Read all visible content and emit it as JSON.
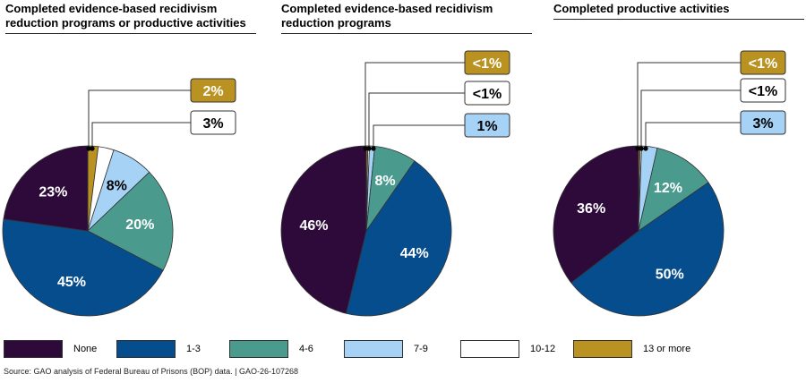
{
  "colors": {
    "None": "#2e0a3b",
    "1-3": "#064d8d",
    "4-6": "#4a9a8e",
    "7-9": "#a6d2f6",
    "10-12": "#ffffff",
    "13 or more": "#b99222"
  },
  "legend": [
    "None",
    "1-3",
    "4-6",
    "7-9",
    "10-12",
    "13 or more"
  ],
  "chart_data": [
    {
      "type": "pie",
      "title": "Completed evidence-based recidivism reduction programs or productive activities",
      "slices": [
        {
          "category": "13 or more",
          "value": 2,
          "label": "2%"
        },
        {
          "category": "10-12",
          "value": 3,
          "label": "3%"
        },
        {
          "category": "7-9",
          "value": 8,
          "label": "8%"
        },
        {
          "category": "4-6",
          "value": 20,
          "label": "20%"
        },
        {
          "category": "1-3",
          "value": 45,
          "label": "45%"
        },
        {
          "category": "None",
          "value": 23,
          "label": "23%"
        }
      ],
      "callouts": [
        "13 or more",
        "10-12"
      ]
    },
    {
      "type": "pie",
      "title": "Completed evidence-based recidivism reduction programs",
      "slices": [
        {
          "category": "13 or more",
          "value": 0.3,
          "label": "<1%"
        },
        {
          "category": "10-12",
          "value": 0.3,
          "label": "<1%"
        },
        {
          "category": "7-9",
          "value": 1,
          "label": "1%"
        },
        {
          "category": "4-6",
          "value": 8,
          "label": "8%"
        },
        {
          "category": "1-3",
          "value": 44,
          "label": "44%"
        },
        {
          "category": "None",
          "value": 46,
          "label": "46%"
        }
      ],
      "callouts": [
        "13 or more",
        "10-12",
        "7-9"
      ]
    },
    {
      "type": "pie",
      "title": "Completed productive activities",
      "slices": [
        {
          "category": "13 or more",
          "value": 0.3,
          "label": "<1%"
        },
        {
          "category": "10-12",
          "value": 0.3,
          "label": "<1%"
        },
        {
          "category": "7-9",
          "value": 3,
          "label": "3%"
        },
        {
          "category": "4-6",
          "value": 12,
          "label": "12%"
        },
        {
          "category": "1-3",
          "value": 50,
          "label": "50%"
        },
        {
          "category": "None",
          "value": 36,
          "label": "36%"
        }
      ],
      "callouts": [
        "13 or more",
        "10-12",
        "7-9"
      ]
    }
  ],
  "source": "Source: GAO analysis of Federal Bureau of Prisons (BOP) data.  |  GAO-26-107268"
}
